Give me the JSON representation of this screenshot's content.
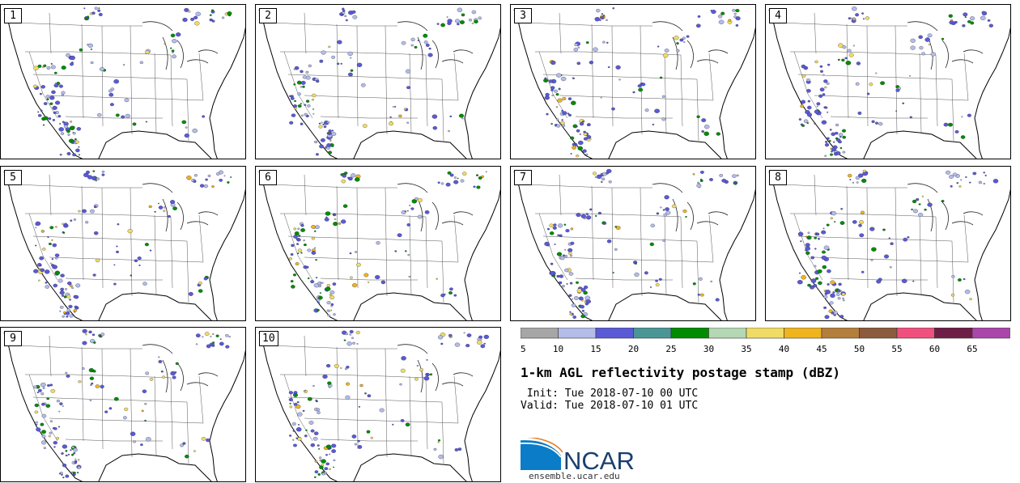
{
  "panels": [
    {
      "label": "1"
    },
    {
      "label": "2"
    },
    {
      "label": "3"
    },
    {
      "label": "4"
    },
    {
      "label": "5"
    },
    {
      "label": "6"
    },
    {
      "label": "7"
    },
    {
      "label": "8"
    },
    {
      "label": "9"
    },
    {
      "label": "10"
    }
  ],
  "colorbar": {
    "ticks": [
      "5",
      "10",
      "15",
      "20",
      "25",
      "30",
      "35",
      "40",
      "45",
      "50",
      "55",
      "60",
      "65"
    ],
    "colors": [
      "#a6a6a6",
      "#b4bce8",
      "#5a5ad6",
      "#4a9696",
      "#008c00",
      "#b4d7b4",
      "#f0dc64",
      "#f0b41e",
      "#b47f3c",
      "#8c5a3c",
      "#f0507d",
      "#6e1e46",
      "#aa46aa"
    ]
  },
  "header": {
    "title": "1-km AGL reflectivity postage stamp (dBZ)",
    "init_line": " Init: Tue 2018-07-10 00 UTC",
    "valid_line": "Valid: Tue 2018-07-10 01 UTC"
  },
  "logo": {
    "text": "NCAR",
    "url": "ensemble.ucar.edu",
    "color": "#1a3f6e"
  }
}
